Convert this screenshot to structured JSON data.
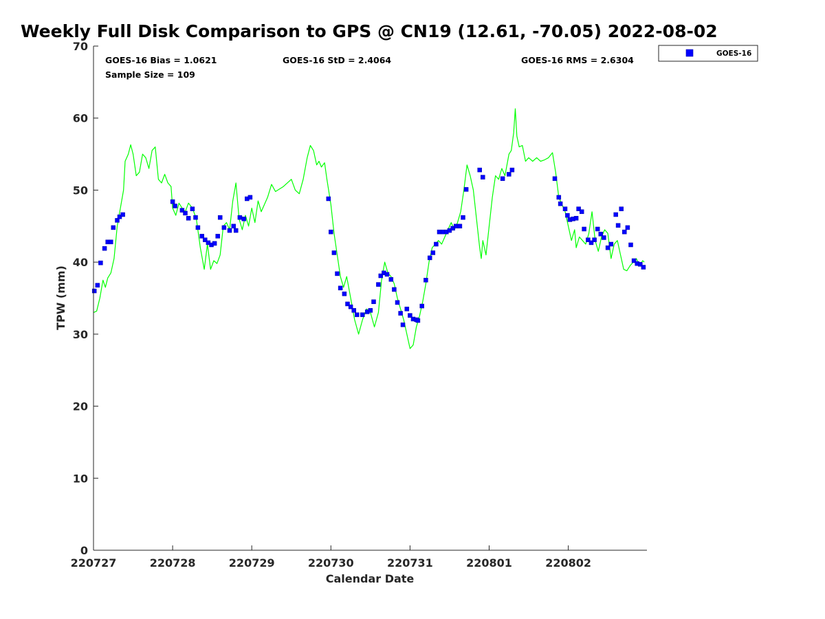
{
  "chart_data": {
    "type": "scatter",
    "title": "Weekly Full Disk Comparison to GPS @ CN19 (12.61, -70.05) 2022-08-02",
    "xlabel": "Calendar Date",
    "ylabel": "TPW (mm)",
    "xlim": [
      0,
      7
    ],
    "ylim": [
      0,
      70
    ],
    "x_ticks": [
      {
        "value": 0,
        "label": "220727"
      },
      {
        "value": 1,
        "label": "220728"
      },
      {
        "value": 2,
        "label": "220729"
      },
      {
        "value": 3,
        "label": "220730"
      },
      {
        "value": 4,
        "label": "220731"
      },
      {
        "value": 5,
        "label": "220801"
      },
      {
        "value": 6,
        "label": "220802"
      }
    ],
    "y_ticks": [
      {
        "value": 0,
        "label": "0"
      },
      {
        "value": 10,
        "label": "10"
      },
      {
        "value": 20,
        "label": "20"
      },
      {
        "value": 30,
        "label": "30"
      },
      {
        "value": 40,
        "label": "40"
      },
      {
        "value": 50,
        "label": "50"
      },
      {
        "value": 60,
        "label": "60"
      },
      {
        "value": 70,
        "label": "70"
      }
    ],
    "stats": {
      "bias": "GOES-16 Bias = 1.0621",
      "std": "GOES-16 StD = 2.4064",
      "rms": "GOES-16 RMS = 2.6304",
      "sample": "Sample Size = 109"
    },
    "legend": {
      "label": "GOES-16",
      "position": "top-right"
    },
    "series": [
      {
        "name": "GPS",
        "style": "line",
        "color": "#00ff00",
        "points": [
          [
            0.0,
            33.0
          ],
          [
            0.04,
            33.2
          ],
          [
            0.08,
            35.0
          ],
          [
            0.12,
            37.5
          ],
          [
            0.15,
            36.5
          ],
          [
            0.18,
            37.8
          ],
          [
            0.22,
            38.5
          ],
          [
            0.26,
            40.5
          ],
          [
            0.3,
            45.0
          ],
          [
            0.34,
            47.5
          ],
          [
            0.38,
            50.0
          ],
          [
            0.4,
            54.0
          ],
          [
            0.44,
            55.0
          ],
          [
            0.47,
            56.3
          ],
          [
            0.5,
            55.0
          ],
          [
            0.54,
            52.0
          ],
          [
            0.58,
            52.5
          ],
          [
            0.62,
            55.0
          ],
          [
            0.66,
            54.5
          ],
          [
            0.7,
            53.0
          ],
          [
            0.74,
            55.5
          ],
          [
            0.78,
            56.0
          ],
          [
            0.82,
            51.5
          ],
          [
            0.86,
            51.0
          ],
          [
            0.9,
            52.2
          ],
          [
            0.94,
            51.0
          ],
          [
            0.98,
            50.5
          ],
          [
            1.0,
            47.5
          ],
          [
            1.04,
            46.5
          ],
          [
            1.08,
            48.2
          ],
          [
            1.12,
            47.5
          ],
          [
            1.16,
            47.0
          ],
          [
            1.2,
            48.2
          ],
          [
            1.25,
            47.5
          ],
          [
            1.3,
            46.0
          ],
          [
            1.35,
            42.0
          ],
          [
            1.4,
            39.0
          ],
          [
            1.44,
            42.5
          ],
          [
            1.48,
            39.0
          ],
          [
            1.52,
            40.2
          ],
          [
            1.56,
            39.8
          ],
          [
            1.6,
            41.0
          ],
          [
            1.64,
            45.0
          ],
          [
            1.68,
            45.5
          ],
          [
            1.72,
            44.5
          ],
          [
            1.76,
            48.5
          ],
          [
            1.8,
            51.0
          ],
          [
            1.84,
            46.0
          ],
          [
            1.88,
            44.5
          ],
          [
            1.92,
            46.5
          ],
          [
            1.96,
            45.0
          ],
          [
            2.0,
            47.5
          ],
          [
            2.04,
            45.5
          ],
          [
            2.08,
            48.5
          ],
          [
            2.12,
            47.0
          ],
          [
            2.2,
            49.0
          ],
          [
            2.25,
            50.8
          ],
          [
            2.3,
            49.8
          ],
          [
            2.4,
            50.5
          ],
          [
            2.5,
            51.5
          ],
          [
            2.55,
            50.0
          ],
          [
            2.6,
            49.5
          ],
          [
            2.65,
            51.5
          ],
          [
            2.7,
            54.5
          ],
          [
            2.74,
            56.2
          ],
          [
            2.78,
            55.5
          ],
          [
            2.82,
            53.5
          ],
          [
            2.85,
            54.0
          ],
          [
            2.88,
            53.2
          ],
          [
            2.92,
            53.8
          ],
          [
            2.95,
            51.5
          ],
          [
            3.0,
            48.0
          ],
          [
            3.04,
            44.0
          ],
          [
            3.08,
            41.0
          ],
          [
            3.12,
            38.0
          ],
          [
            3.16,
            36.5
          ],
          [
            3.2,
            38.0
          ],
          [
            3.25,
            35.0
          ],
          [
            3.3,
            32.0
          ],
          [
            3.35,
            30.0
          ],
          [
            3.4,
            32.0
          ],
          [
            3.45,
            33.5
          ],
          [
            3.5,
            33.0
          ],
          [
            3.55,
            31.0
          ],
          [
            3.6,
            33.0
          ],
          [
            3.64,
            37.5
          ],
          [
            3.68,
            40.0
          ],
          [
            3.72,
            38.5
          ],
          [
            3.76,
            38.0
          ],
          [
            3.8,
            37.0
          ],
          [
            3.84,
            35.0
          ],
          [
            3.88,
            33.5
          ],
          [
            3.92,
            32.0
          ],
          [
            3.96,
            30.0
          ],
          [
            4.0,
            28.0
          ],
          [
            4.04,
            28.5
          ],
          [
            4.08,
            31.0
          ],
          [
            4.12,
            32.5
          ],
          [
            4.16,
            34.5
          ],
          [
            4.2,
            37.0
          ],
          [
            4.24,
            40.0
          ],
          [
            4.28,
            42.0
          ],
          [
            4.32,
            42.5
          ],
          [
            4.36,
            43.0
          ],
          [
            4.4,
            42.5
          ],
          [
            4.44,
            43.5
          ],
          [
            4.48,
            44.5
          ],
          [
            4.52,
            45.5
          ],
          [
            4.56,
            44.5
          ],
          [
            4.6,
            45.5
          ],
          [
            4.64,
            47.0
          ],
          [
            4.68,
            50.0
          ],
          [
            4.72,
            53.5
          ],
          [
            4.76,
            52.0
          ],
          [
            4.8,
            50.0
          ],
          [
            4.84,
            46.0
          ],
          [
            4.88,
            42.0
          ],
          [
            4.9,
            40.5
          ],
          [
            4.92,
            43.0
          ],
          [
            4.96,
            41.0
          ],
          [
            5.0,
            45.0
          ],
          [
            5.04,
            49.0
          ],
          [
            5.08,
            52.0
          ],
          [
            5.12,
            51.5
          ],
          [
            5.16,
            53.0
          ],
          [
            5.2,
            52.0
          ],
          [
            5.25,
            55.0
          ],
          [
            5.28,
            55.5
          ],
          [
            5.31,
            58.0
          ],
          [
            5.33,
            61.3
          ],
          [
            5.35,
            57.5
          ],
          [
            5.38,
            56.0
          ],
          [
            5.42,
            56.2
          ],
          [
            5.46,
            54.0
          ],
          [
            5.5,
            54.5
          ],
          [
            5.55,
            54.0
          ],
          [
            5.6,
            54.5
          ],
          [
            5.65,
            54.0
          ],
          [
            5.7,
            54.2
          ],
          [
            5.75,
            54.5
          ],
          [
            5.8,
            55.2
          ],
          [
            5.84,
            52.5
          ],
          [
            5.88,
            49.0
          ],
          [
            5.92,
            48.0
          ],
          [
            5.96,
            47.0
          ],
          [
            6.0,
            45.0
          ],
          [
            6.04,
            43.0
          ],
          [
            6.08,
            44.5
          ],
          [
            6.1,
            42.0
          ],
          [
            6.14,
            43.5
          ],
          [
            6.18,
            43.0
          ],
          [
            6.22,
            42.5
          ],
          [
            6.26,
            44.0
          ],
          [
            6.3,
            47.0
          ],
          [
            6.34,
            43.0
          ],
          [
            6.38,
            41.5
          ],
          [
            6.42,
            43.5
          ],
          [
            6.46,
            44.5
          ],
          [
            6.5,
            44.0
          ],
          [
            6.54,
            40.5
          ],
          [
            6.58,
            42.5
          ],
          [
            6.62,
            43.0
          ],
          [
            6.66,
            41.0
          ],
          [
            6.7,
            39.0
          ],
          [
            6.74,
            38.8
          ],
          [
            6.78,
            39.5
          ],
          [
            6.82,
            40.0
          ],
          [
            6.86,
            40.5
          ],
          [
            6.9,
            39.5
          ],
          [
            6.94,
            40.2
          ],
          [
            6.96,
            40.0
          ]
        ]
      },
      {
        "name": "GOES-16",
        "style": "marker",
        "color": "#0000ff",
        "points": [
          [
            0.01,
            36.0
          ],
          [
            0.05,
            36.8
          ],
          [
            0.09,
            39.9
          ],
          [
            0.14,
            41.9
          ],
          [
            0.18,
            42.8
          ],
          [
            0.22,
            42.8
          ],
          [
            0.25,
            44.8
          ],
          [
            0.3,
            45.8
          ],
          [
            0.33,
            46.3
          ],
          [
            0.37,
            46.6
          ],
          [
            1.0,
            48.4
          ],
          [
            1.03,
            47.8
          ],
          [
            1.12,
            47.2
          ],
          [
            1.16,
            46.8
          ],
          [
            1.2,
            46.1
          ],
          [
            1.25,
            47.4
          ],
          [
            1.29,
            46.2
          ],
          [
            1.32,
            44.8
          ],
          [
            1.37,
            43.6
          ],
          [
            1.41,
            43.1
          ],
          [
            1.45,
            42.7
          ],
          [
            1.49,
            42.4
          ],
          [
            1.53,
            42.6
          ],
          [
            1.57,
            43.6
          ],
          [
            1.6,
            46.2
          ],
          [
            1.65,
            44.8
          ],
          [
            1.72,
            44.4
          ],
          [
            1.77,
            45.0
          ],
          [
            1.8,
            44.4
          ],
          [
            1.85,
            46.2
          ],
          [
            1.9,
            46.0
          ],
          [
            1.94,
            48.8
          ],
          [
            1.98,
            49.0
          ],
          [
            2.97,
            48.8
          ],
          [
            3.0,
            44.2
          ],
          [
            3.04,
            41.3
          ],
          [
            3.08,
            38.4
          ],
          [
            3.12,
            36.4
          ],
          [
            3.17,
            35.6
          ],
          [
            3.21,
            34.2
          ],
          [
            3.25,
            33.8
          ],
          [
            3.29,
            33.3
          ],
          [
            3.33,
            32.7
          ],
          [
            3.4,
            32.7
          ],
          [
            3.46,
            33.1
          ],
          [
            3.5,
            33.3
          ],
          [
            3.54,
            34.5
          ],
          [
            3.6,
            36.9
          ],
          [
            3.63,
            38.1
          ],
          [
            3.67,
            38.5
          ],
          [
            3.71,
            38.3
          ],
          [
            3.76,
            37.6
          ],
          [
            3.8,
            36.2
          ],
          [
            3.84,
            34.4
          ],
          [
            3.88,
            32.9
          ],
          [
            3.91,
            31.3
          ],
          [
            3.96,
            33.5
          ],
          [
            4.0,
            32.6
          ],
          [
            4.04,
            32.1
          ],
          [
            4.08,
            32.0
          ],
          [
            4.1,
            31.9
          ],
          [
            4.15,
            33.9
          ],
          [
            4.2,
            37.5
          ],
          [
            4.25,
            40.6
          ],
          [
            4.29,
            41.3
          ],
          [
            4.33,
            42.5
          ],
          [
            4.37,
            44.2
          ],
          [
            4.42,
            44.2
          ],
          [
            4.46,
            44.2
          ],
          [
            4.5,
            44.4
          ],
          [
            4.54,
            44.7
          ],
          [
            4.58,
            45.0
          ],
          [
            4.63,
            45.0
          ],
          [
            4.67,
            46.2
          ],
          [
            4.71,
            50.1
          ],
          [
            4.88,
            52.8
          ],
          [
            4.92,
            51.8
          ],
          [
            5.17,
            51.6
          ],
          [
            5.25,
            52.2
          ],
          [
            5.29,
            52.8
          ],
          [
            5.83,
            51.6
          ],
          [
            5.88,
            49.0
          ],
          [
            5.9,
            48.1
          ],
          [
            5.96,
            47.4
          ],
          [
            5.99,
            46.5
          ],
          [
            6.02,
            45.9
          ],
          [
            6.06,
            46.0
          ],
          [
            6.1,
            46.1
          ],
          [
            6.13,
            47.4
          ],
          [
            6.17,
            47.0
          ],
          [
            6.2,
            44.6
          ],
          [
            6.25,
            43.1
          ],
          [
            6.29,
            42.7
          ],
          [
            6.33,
            43.1
          ],
          [
            6.37,
            44.6
          ],
          [
            6.41,
            43.9
          ],
          [
            6.45,
            43.4
          ],
          [
            6.5,
            42.0
          ],
          [
            6.54,
            42.5
          ],
          [
            6.6,
            46.6
          ],
          [
            6.63,
            45.1
          ],
          [
            6.67,
            47.4
          ],
          [
            6.71,
            44.2
          ],
          [
            6.75,
            44.8
          ],
          [
            6.79,
            42.4
          ],
          [
            6.83,
            40.2
          ],
          [
            6.87,
            39.8
          ],
          [
            6.91,
            39.7
          ],
          [
            6.95,
            39.3
          ]
        ]
      }
    ]
  }
}
